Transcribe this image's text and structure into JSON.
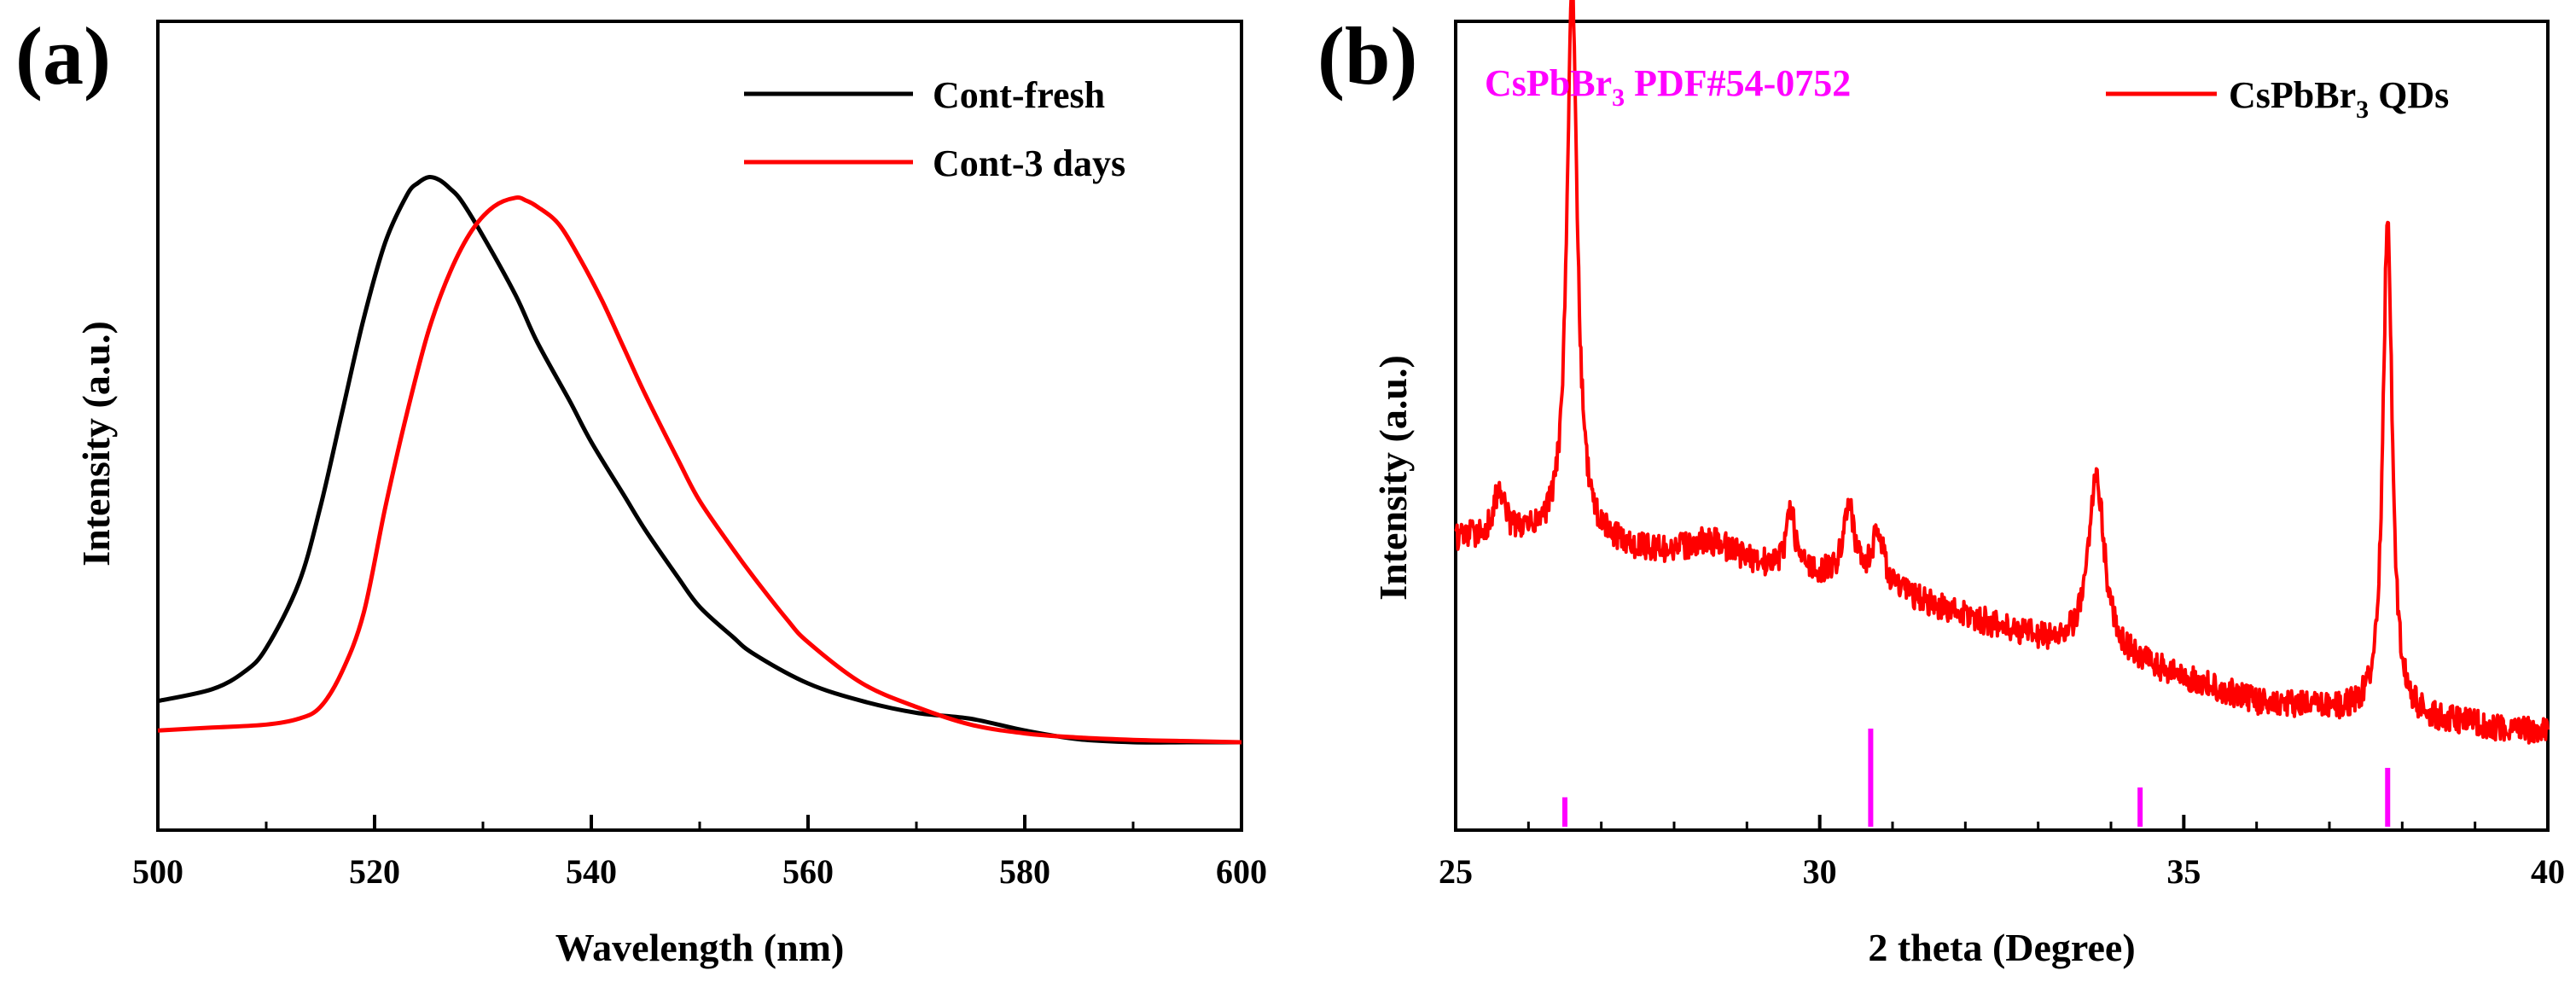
{
  "chart_data": [
    {
      "panel": "(a)",
      "type": "line",
      "xlabel": "Wavelength (nm)",
      "ylabel": "Intensity (a.u.)",
      "xlim": [
        500,
        600
      ],
      "xticks": [
        "500",
        "520",
        "540",
        "560",
        "580",
        "600"
      ],
      "y_tick_labels": false,
      "legend": {
        "placement": "top-right",
        "entries": [
          {
            "name": "Cont-fresh",
            "color": "#000000"
          },
          {
            "name": "Cont-3 days",
            "color": "#ff0000"
          }
        ]
      },
      "series": [
        {
          "name": "Cont-fresh",
          "color": "#000000",
          "x": [
            500,
            505,
            508,
            510,
            513,
            515,
            517,
            519,
            521,
            523,
            524,
            525,
            526,
            527,
            528,
            530,
            533,
            535,
            538,
            540,
            543,
            545,
            548,
            550,
            553,
            555,
            560,
            565,
            570,
            575,
            580,
            585,
            590,
            595,
            600
          ],
          "y": [
            0.07,
            0.09,
            0.12,
            0.16,
            0.27,
            0.4,
            0.56,
            0.72,
            0.85,
            0.93,
            0.95,
            0.96,
            0.955,
            0.94,
            0.92,
            0.86,
            0.76,
            0.68,
            0.58,
            0.51,
            0.42,
            0.36,
            0.28,
            0.23,
            0.18,
            0.15,
            0.1,
            0.07,
            0.05,
            0.04,
            0.02,
            0.005,
            0.0,
            0.0,
            0.0
          ]
        },
        {
          "name": "Cont-3 days",
          "color": "#ff0000",
          "x": [
            500,
            505,
            510,
            513,
            515,
            517,
            519,
            521,
            523,
            525,
            527,
            529,
            531,
            533,
            534,
            535,
            537,
            539,
            541,
            543,
            545,
            548,
            550,
            553,
            555,
            558,
            560,
            565,
            570,
            575,
            580,
            585,
            590,
            595,
            600
          ],
          "y": [
            0.02,
            0.025,
            0.03,
            0.04,
            0.06,
            0.12,
            0.22,
            0.4,
            0.56,
            0.7,
            0.8,
            0.87,
            0.91,
            0.925,
            0.92,
            0.91,
            0.88,
            0.82,
            0.75,
            0.67,
            0.59,
            0.48,
            0.41,
            0.33,
            0.28,
            0.21,
            0.17,
            0.1,
            0.06,
            0.03,
            0.015,
            0.008,
            0.004,
            0.002,
            0.0
          ]
        }
      ]
    },
    {
      "panel": "(b)",
      "type": "line",
      "xlabel": "2 theta (Degree)",
      "ylabel": "Intensity (a.u.)",
      "xlim": [
        25,
        40
      ],
      "xticks": [
        "25",
        "30",
        "35",
        "40"
      ],
      "y_tick_labels": false,
      "reference_label": {
        "main": "CsPbBr",
        "sub": "3",
        "tail": " PDF#54-0752",
        "color": "#ff00ff"
      },
      "legend": {
        "placement": "top-right",
        "entries": [
          {
            "name": "CsPbBr",
            "sub": "3",
            "tail": " QDs",
            "color": "#ff0000"
          }
        ]
      },
      "reference_peaks": [
        {
          "x": 26.5,
          "height": 0.3
        },
        {
          "x": 30.7,
          "height": 1.0
        },
        {
          "x": 34.4,
          "height": 0.4
        },
        {
          "x": 37.8,
          "height": 0.6
        }
      ],
      "series": [
        {
          "name": "CsPbBr3 QDs",
          "color": "#ff0000",
          "baseline": {
            "x": [
              25,
              26,
              27,
              28,
              29,
              30,
              31,
              32,
              33,
              34,
              35,
              36,
              37,
              38,
              39,
              40
            ],
            "y": [
              0.3,
              0.3,
              0.29,
              0.27,
              0.26,
              0.25,
              0.23,
              0.2,
              0.17,
              0.15,
              0.12,
              0.09,
              0.08,
              0.07,
              0.06,
              0.05
            ]
          },
          "peaks": [
            {
              "x": 25.6,
              "height": 0.06,
              "width": 0.09
            },
            {
              "x": 26.6,
              "height": 0.72,
              "width": 0.085
            },
            {
              "x": 28.5,
              "height": 0.03,
              "width": 0.5
            },
            {
              "x": 29.6,
              "height": 0.08,
              "width": 0.07
            },
            {
              "x": 30.4,
              "height": 0.1,
              "width": 0.09
            },
            {
              "x": 30.8,
              "height": 0.07,
              "width": 0.1
            },
            {
              "x": 33.8,
              "height": 0.23,
              "width": 0.13
            },
            {
              "x": 37.8,
              "height": 0.65,
              "width": 0.075
            }
          ]
        }
      ]
    }
  ]
}
